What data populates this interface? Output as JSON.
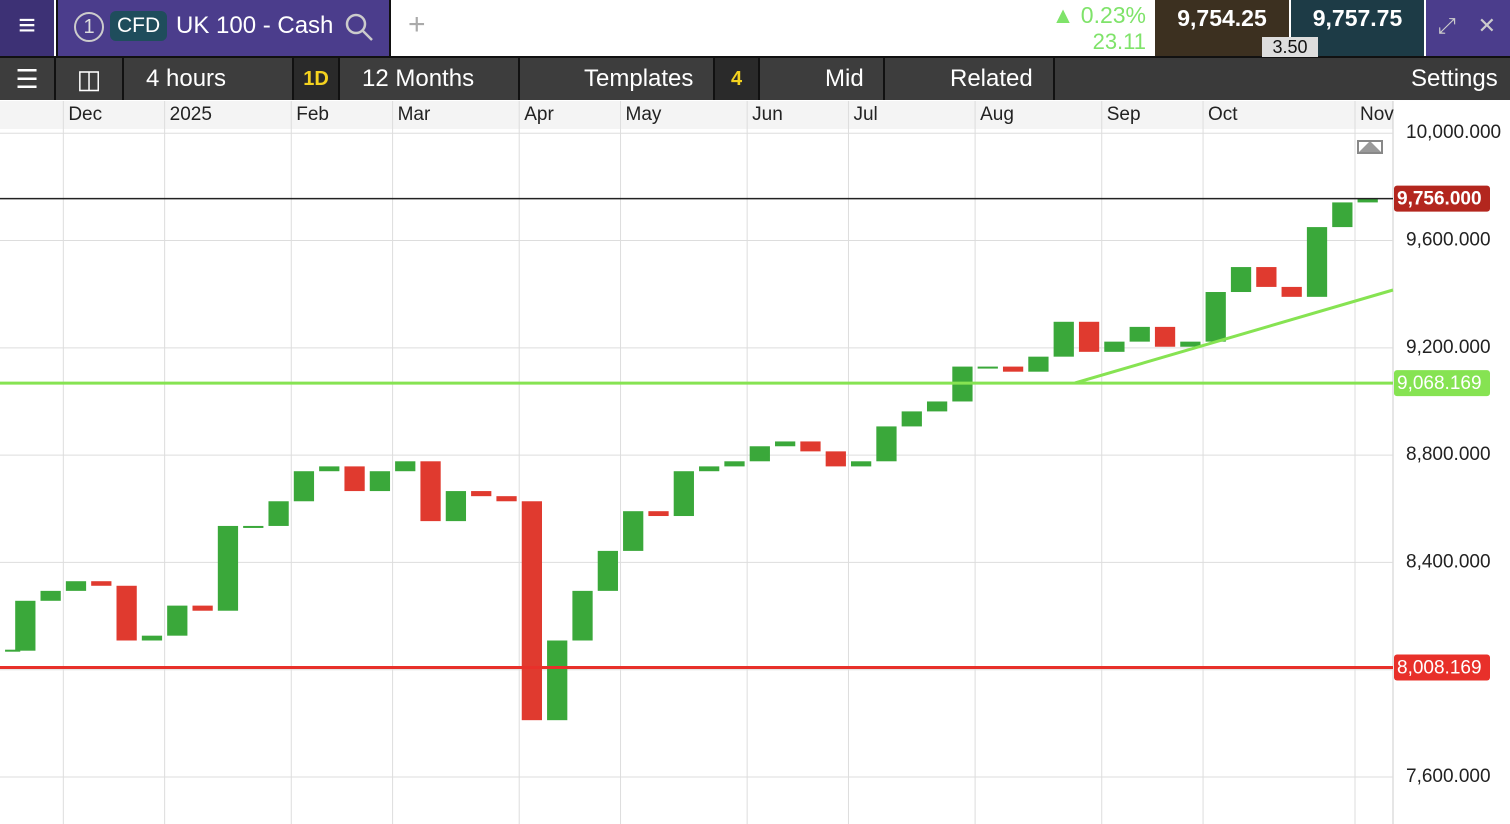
{
  "header": {
    "tab_number": "1",
    "badge": "CFD",
    "instrument": "UK 100 - Cash",
    "change_pct": "0.23%",
    "change": "23.11",
    "sell": "9,754.25",
    "buy": "9,757.75",
    "spread": "3.50"
  },
  "toolbar": {
    "interval": "4 hours",
    "period_badge": "1D",
    "range": "12 Months",
    "templates": "Templates",
    "templates_count": "4",
    "price_type": "Mid",
    "related": "Related",
    "settings": "Settings"
  },
  "chart_data": {
    "type": "candlestick",
    "categories": [
      null,
      null,
      "Dec",
      null,
      null,
      null,
      "2025",
      null,
      null,
      null,
      null,
      "Feb",
      null,
      null,
      null,
      "Mar",
      null,
      null,
      null,
      null,
      "Apr",
      null,
      null,
      null,
      "May",
      null,
      null,
      null,
      null,
      "Jun",
      null,
      null,
      null,
      "Jul",
      null,
      null,
      null,
      null,
      "Aug",
      null,
      null,
      null,
      null,
      "Sep",
      null,
      null,
      null,
      "Oct",
      null,
      null,
      null,
      null,
      null,
      "Nov",
      null
    ],
    "values": [
      8071,
      8257,
      8294,
      8330,
      8313,
      8109,
      8127,
      8239,
      8220,
      8536,
      8536,
      8628,
      8740,
      8758,
      8666,
      8740,
      8777,
      8554,
      8666,
      8647,
      8628,
      7812,
      8109,
      8294,
      8443,
      8591,
      8573,
      8740,
      8758,
      8777,
      8833,
      8851,
      8814,
      8758,
      8777,
      8907,
      8963,
      9000,
      9130,
      9130,
      9111,
      9167,
      9297,
      9185,
      9223,
      9278,
      9204,
      9223,
      9408,
      9501,
      9427,
      9390,
      9650,
      9742,
      9756
    ],
    "up_color": "#3aa83a",
    "down_color": "#e03a2f",
    "ylim": [
      7425,
      10120
    ],
    "yticks": [
      {
        "value": 7600,
        "label": "7,600.000"
      },
      {
        "value": 8000,
        "label": "8,000.000"
      },
      {
        "value": 8400,
        "label": "8,400.000"
      },
      {
        "value": 8800,
        "label": "8,800.000"
      },
      {
        "value": 9200,
        "label": "9,200.000"
      },
      {
        "value": 9600,
        "label": "9,600.000"
      },
      {
        "value": 10000,
        "label": "10,000.000"
      }
    ],
    "grid": true,
    "price_lines": [
      {
        "value": 9756,
        "label": "9,756.000",
        "color": "#b3261e",
        "line_color": "#222222"
      },
      {
        "value": 9068.169,
        "label": "9,068.169",
        "color": "#86e352",
        "line_color": "#86e352"
      },
      {
        "value": 8008.169,
        "label": "8,008.169",
        "color": "#e8302a",
        "line_color": "#e8302a"
      }
    ]
  }
}
